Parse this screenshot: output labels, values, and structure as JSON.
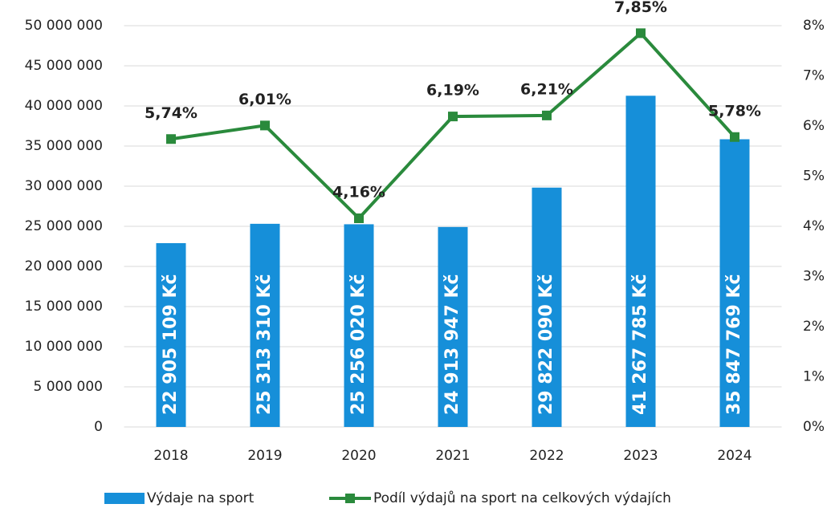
{
  "chart_data": {
    "type": "bar_line",
    "categories": [
      "2018",
      "2019",
      "2020",
      "2021",
      "2022",
      "2023",
      "2024"
    ],
    "series": [
      {
        "name": "Výdaje na sport",
        "type": "bar",
        "color": "#168fd9",
        "values": [
          22905109,
          25313310,
          25256020,
          24913947,
          29822090,
          41267785,
          35847769
        ],
        "value_labels": [
          "22 905 109 Kč",
          "25 313 310 Kč",
          "25 256 020 Kč",
          "24 913 947 Kč",
          "29 822 090 Kč",
          "41 267 785 Kč",
          "35 847 769 Kč"
        ]
      },
      {
        "name": "Podíl výdajů na sport na celkových výdajích",
        "type": "line",
        "axis": "y2",
        "color": "#2a8a3c",
        "values": [
          5.74,
          6.01,
          4.16,
          6.19,
          6.21,
          7.85,
          5.78
        ],
        "value_labels": [
          "5,74%",
          "6,01%",
          "4,16%",
          "6,19%",
          "6,21%",
          "7,85%",
          "5,78%"
        ]
      }
    ],
    "ylim": [
      0,
      50000000
    ],
    "yticks": [
      0,
      {
        "value": 5000000,
        "label": "5 000 000"
      },
      {
        "value": 10000000,
        "label": "10 000 000"
      },
      {
        "value": 15000000,
        "label": "15 000 000"
      },
      {
        "value": 20000000,
        "label": "20 000 000"
      },
      {
        "value": 25000000,
        "label": "25 000 000"
      },
      {
        "value": 30000000,
        "label": "30 000 000"
      },
      {
        "value": 35000000,
        "label": "35 000 000"
      },
      {
        "value": 40000000,
        "label": "40 000 000"
      },
      {
        "value": 45000000,
        "label": "45 000 000"
      },
      {
        "value": 50000000,
        "label": "50 000 000"
      }
    ],
    "y2lim": [
      0,
      8
    ],
    "y2ticks": [
      {
        "value": 0,
        "label": "0%"
      },
      {
        "value": 1,
        "label": "1%"
      },
      {
        "value": 2,
        "label": "2%"
      },
      {
        "value": 3,
        "label": "3%"
      },
      {
        "value": 4,
        "label": "4%"
      },
      {
        "value": 5,
        "label": "5%"
      },
      {
        "value": 6,
        "label": "6%"
      },
      {
        "value": 7,
        "label": "7%"
      },
      {
        "value": 8,
        "label": "8%"
      }
    ],
    "grid": true,
    "legend": "bottom"
  }
}
